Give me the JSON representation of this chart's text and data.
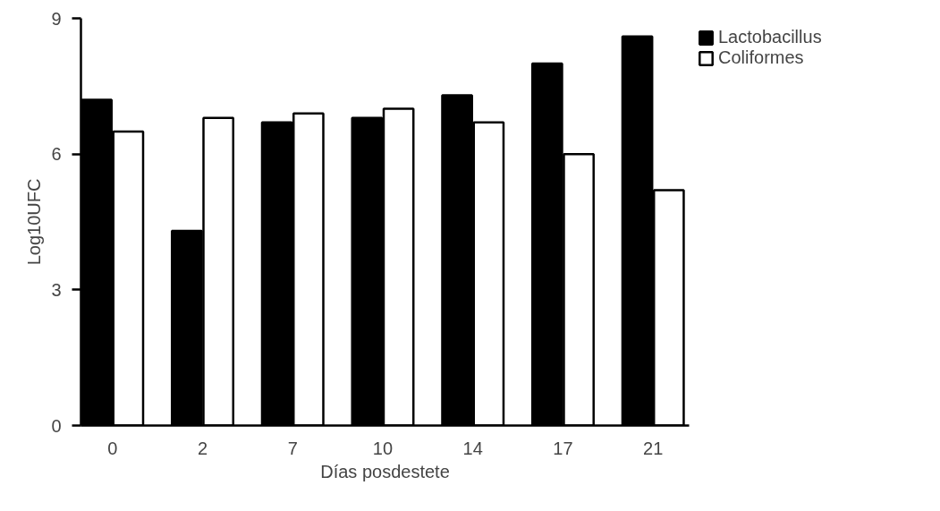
{
  "chart_data": {
    "type": "bar",
    "xlabel": "Días posdestete",
    "ylabel": "Log10UFC",
    "categories": [
      "0",
      "2",
      "7",
      "10",
      "14",
      "17",
      "21"
    ],
    "series": [
      {
        "name": "Lactobacillus",
        "color": "#000000",
        "values": [
          7.2,
          4.3,
          6.7,
          6.8,
          7.3,
          8.0,
          8.6
        ]
      },
      {
        "name": "Coliformes",
        "color": "#ffffff",
        "values": [
          6.5,
          6.8,
          6.9,
          7.0,
          6.7,
          6.0,
          5.2
        ]
      }
    ],
    "ylim": [
      0,
      9
    ],
    "yticks": [
      0,
      3,
      6,
      9
    ],
    "grid": false,
    "legend": "right"
  }
}
